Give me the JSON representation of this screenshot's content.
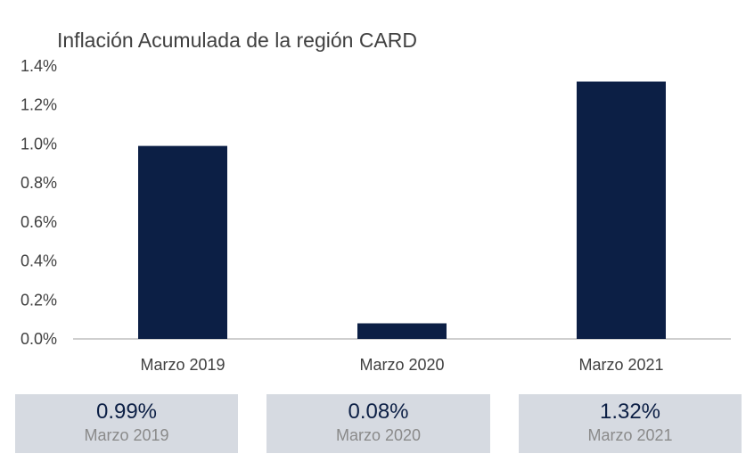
{
  "chart_data": {
    "type": "bar",
    "title": "Inflación Acumulada de la región CARD",
    "xlabel": "",
    "ylabel": "",
    "categories": [
      "Marzo 2019",
      "Marzo 2020",
      "Marzo 2021"
    ],
    "values": [
      0.99,
      0.08,
      1.32
    ],
    "value_unit": "%",
    "ylim": [
      0,
      1.4
    ],
    "yticks": [
      "0.0%",
      "0.2%",
      "0.4%",
      "0.6%",
      "0.8%",
      "1.0%",
      "1.2%",
      "1.4%"
    ],
    "grid": false,
    "legend": "none",
    "bar_color": "#0c1f45"
  },
  "cards": [
    {
      "value": "0.99%",
      "label": "Marzo 2019"
    },
    {
      "value": "0.08%",
      "label": "Marzo 2020"
    },
    {
      "value": "1.32%",
      "label": "Marzo 2021"
    }
  ],
  "colors": {
    "card_background": "#d6dae1",
    "card_value": "#0c1f45",
    "card_label": "#8a8a8a",
    "axis": "#bfbfbf"
  }
}
